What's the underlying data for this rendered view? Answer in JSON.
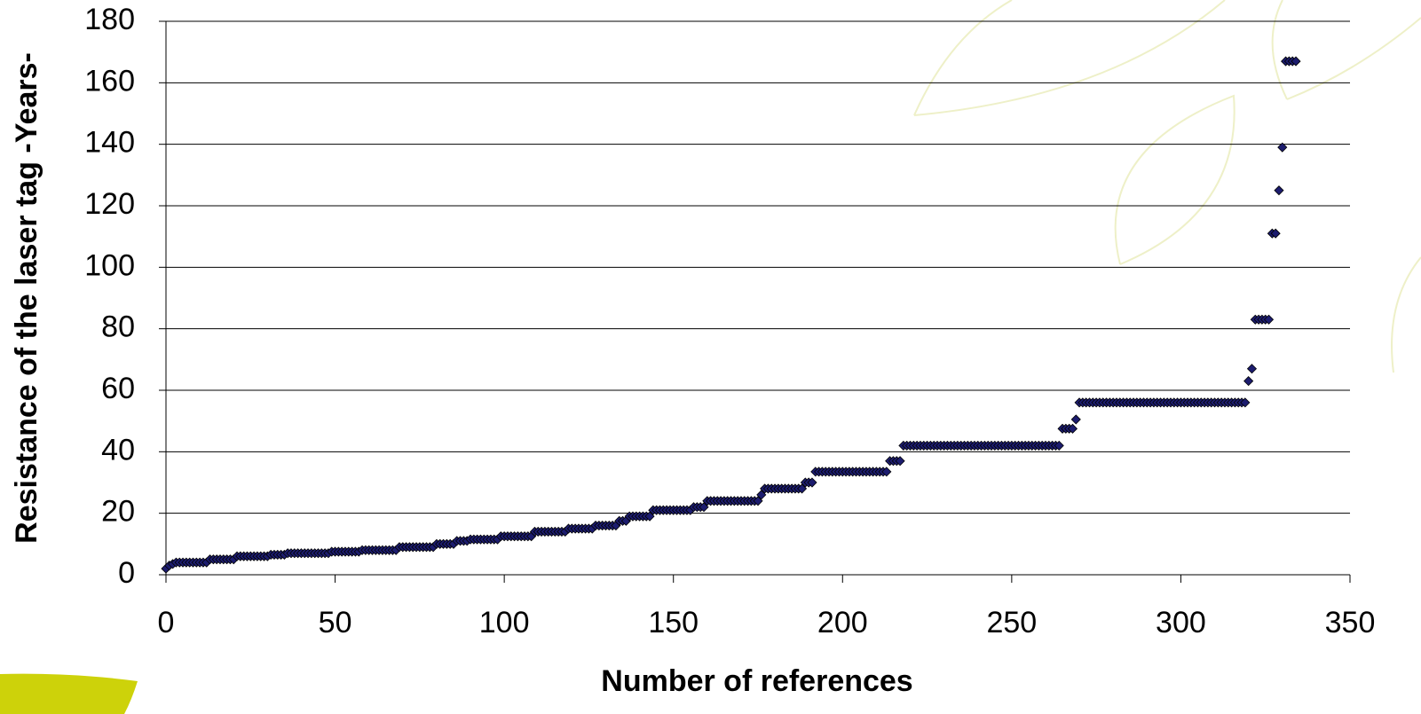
{
  "chart_data": {
    "type": "scatter",
    "x_label": "Number of references",
    "y_label": "Resistance of the laser tag -Years-",
    "color": "#1c1c6e",
    "xlim": [
      0,
      350
    ],
    "xticks": [
      0,
      50,
      100,
      150,
      200,
      250,
      300,
      350
    ],
    "ylim": [
      0,
      180
    ],
    "yticks": [
      0,
      20,
      40,
      60,
      80,
      100,
      120,
      140,
      160,
      180
    ],
    "grid": true,
    "x": [
      0,
      1,
      2,
      3,
      4,
      5,
      6,
      7,
      8,
      9,
      10,
      11,
      12,
      13,
      14,
      15,
      16,
      17,
      18,
      19,
      20,
      21,
      22,
      23,
      24,
      25,
      26,
      27,
      28,
      29,
      30,
      31,
      32,
      33,
      34,
      35,
      36,
      37,
      38,
      39,
      40,
      41,
      42,
      43,
      44,
      45,
      46,
      47,
      48,
      49,
      50,
      51,
      52,
      53,
      54,
      55,
      56,
      57,
      58,
      59,
      60,
      61,
      62,
      63,
      64,
      65,
      66,
      67,
      68,
      69,
      70,
      71,
      72,
      73,
      74,
      75,
      76,
      77,
      78,
      79,
      80,
      81,
      82,
      83,
      84,
      85,
      86,
      87,
      88,
      89,
      90,
      91,
      92,
      93,
      94,
      95,
      96,
      97,
      98,
      99,
      100,
      101,
      102,
      103,
      104,
      105,
      106,
      107,
      108,
      109,
      110,
      111,
      112,
      113,
      114,
      115,
      116,
      117,
      118,
      119,
      120,
      121,
      122,
      123,
      124,
      125,
      126,
      127,
      128,
      129,
      130,
      131,
      132,
      133,
      134,
      135,
      136,
      137,
      138,
      139,
      140,
      141,
      142,
      143,
      144,
      145,
      146,
      147,
      148,
      149,
      150,
      151,
      152,
      153,
      154,
      155,
      156,
      157,
      158,
      159,
      160,
      161,
      162,
      163,
      164,
      165,
      166,
      167,
      168,
      169,
      170,
      171,
      172,
      173,
      174,
      175,
      176,
      177,
      178,
      179,
      180,
      181,
      182,
      183,
      184,
      185,
      186,
      187,
      188,
      189,
      190,
      191,
      192,
      193,
      194,
      195,
      196,
      197,
      198,
      199,
      200,
      201,
      202,
      203,
      204,
      205,
      206,
      207,
      208,
      209,
      210,
      211,
      212,
      213,
      214,
      215,
      216,
      217,
      218,
      219,
      220,
      221,
      222,
      223,
      224,
      225,
      226,
      227,
      228,
      229,
      230,
      231,
      232,
      233,
      234,
      235,
      236,
      237,
      238,
      239,
      240,
      241,
      242,
      243,
      244,
      245,
      246,
      247,
      248,
      249,
      250,
      251,
      252,
      253,
      254,
      255,
      256,
      257,
      258,
      259,
      260,
      261,
      262,
      263,
      264,
      265,
      266,
      267,
      268,
      269,
      270,
      271,
      272,
      273,
      274,
      275,
      276,
      277,
      278,
      279,
      280,
      281,
      282,
      283,
      284,
      285,
      286,
      287,
      288,
      289,
      290,
      291,
      292,
      293,
      294,
      295,
      296,
      297,
      298,
      299,
      300,
      301,
      302,
      303,
      304,
      305,
      306,
      307,
      308,
      309,
      310,
      311,
      312,
      313,
      314,
      315,
      316,
      317,
      318,
      319,
      320,
      321,
      322,
      323,
      324,
      325,
      326,
      327,
      328,
      329,
      330,
      331,
      332,
      333,
      334
    ],
    "values": [
      2,
      3,
      3.5,
      4,
      4,
      4,
      4,
      4,
      4,
      4,
      4,
      4,
      4,
      5,
      5,
      5,
      5,
      5,
      5,
      5,
      5,
      6,
      6,
      6,
      6,
      6,
      6,
      6,
      6,
      6,
      6,
      6.5,
      6.5,
      6.5,
      6.5,
      6.5,
      7,
      7,
      7,
      7,
      7,
      7,
      7,
      7,
      7,
      7,
      7,
      7,
      7,
      7.5,
      7.5,
      7.5,
      7.5,
      7.5,
      7.5,
      7.5,
      7.5,
      7.5,
      8,
      8,
      8,
      8,
      8,
      8,
      8,
      8,
      8,
      8,
      8,
      9,
      9,
      9,
      9,
      9,
      9,
      9,
      9,
      9,
      9,
      9,
      10,
      10,
      10,
      10,
      10,
      10,
      11,
      11,
      11,
      11,
      11.5,
      11.5,
      11.5,
      11.5,
      11.5,
      11.5,
      11.5,
      11.5,
      11.5,
      12.5,
      12.5,
      12.5,
      12.5,
      12.5,
      12.5,
      12.5,
      12.5,
      12.5,
      12.5,
      14,
      14,
      14,
      14,
      14,
      14,
      14,
      14,
      14,
      14,
      15,
      15,
      15,
      15,
      15,
      15,
      15,
      15,
      16,
      16,
      16,
      16,
      16,
      16,
      16,
      17.5,
      17.5,
      17.5,
      19,
      19,
      19,
      19,
      19,
      19,
      19,
      21,
      21,
      21,
      21,
      21,
      21,
      21,
      21,
      21,
      21,
      21,
      21,
      22,
      22,
      22,
      22,
      24,
      24,
      24,
      24,
      24,
      24,
      24,
      24,
      24,
      24,
      24,
      24,
      24,
      24,
      24,
      24,
      26,
      28,
      28,
      28,
      28,
      28,
      28,
      28,
      28,
      28,
      28,
      28,
      28,
      30,
      30,
      30,
      33.5,
      33.5,
      33.5,
      33.5,
      33.5,
      33.5,
      33.5,
      33.5,
      33.5,
      33.5,
      33.5,
      33.5,
      33.5,
      33.5,
      33.5,
      33.5,
      33.5,
      33.5,
      33.5,
      33.5,
      33.5,
      33.5,
      37,
      37,
      37,
      37,
      42,
      42,
      42,
      42,
      42,
      42,
      42,
      42,
      42,
      42,
      42,
      42,
      42,
      42,
      42,
      42,
      42,
      42,
      42,
      42,
      42,
      42,
      42,
      42,
      42,
      42,
      42,
      42,
      42,
      42,
      42,
      42,
      42,
      42,
      42,
      42,
      42,
      42,
      42,
      42,
      42,
      42,
      42,
      42,
      42,
      42,
      42,
      47.5,
      47.5,
      47.5,
      47.5,
      50.5,
      56,
      56,
      56,
      56,
      56,
      56,
      56,
      56,
      56,
      56,
      56,
      56,
      56,
      56,
      56,
      56,
      56,
      56,
      56,
      56,
      56,
      56,
      56,
      56,
      56,
      56,
      56,
      56,
      56,
      56,
      56,
      56,
      56,
      56,
      56,
      56,
      56,
      56,
      56,
      56,
      56,
      56,
      56,
      56,
      56,
      56,
      56,
      56,
      56,
      56,
      63,
      67,
      83,
      83,
      83,
      83,
      83,
      111,
      111,
      125,
      139,
      167,
      167,
      167,
      167
    ]
  }
}
